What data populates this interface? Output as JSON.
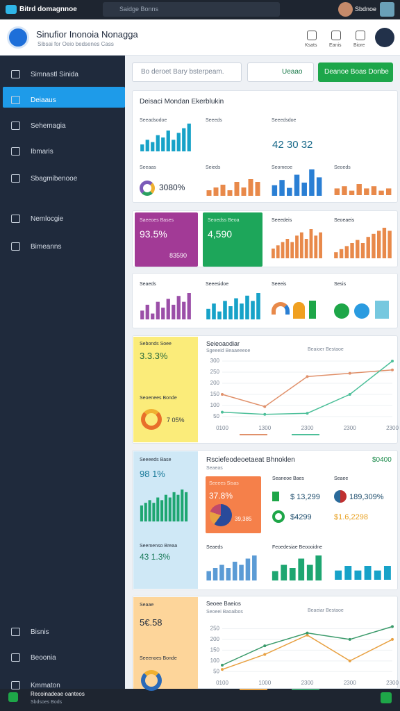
{
  "topbar": {
    "app": "Bitrd domagnnoe",
    "search": "Saidge Bonns",
    "user": "Sbdnoe"
  },
  "header": {
    "title": "Sinufior Inonoia Nonagga",
    "subtitle": "Sibsai for Oeio bedsenes Cass",
    "actions": [
      "Ksats",
      "Eanis",
      "Biore"
    ]
  },
  "sidebar": {
    "items": [
      "Simnastl Sinida",
      "Deiaaus",
      "Sehemagia",
      "Ibmaris",
      "Sbagmibenooe",
      "Nemlocgie",
      "Bimeanns"
    ],
    "bottom": [
      "Bisnis",
      "Beoonia",
      "Kmmaton"
    ]
  },
  "toolbar": {
    "search": "Bo deroet Bary bsterpeam.",
    "button": "Ueaao",
    "primary": "Deanoe Boas Donbe"
  },
  "overview": {
    "title": "Deisaci Mondan Ekerblukin",
    "labels": [
      "Seeadsodoe",
      "Seeeds",
      "Seeedsdoe",
      "Seeaas",
      "Seieds",
      "Seomeoe",
      "Seoeds"
    ],
    "stats": [
      "42 30 32",
      "3080%"
    ]
  },
  "kpis": {
    "purple": {
      "label": "Saeeoes Bases",
      "value": "93.5%",
      "foot": "83590"
    },
    "green": {
      "label": "Seoedss Beoa",
      "value": "4,590"
    },
    "labels": [
      "Seeedeis",
      "Seoeaeis"
    ]
  },
  "row3": {
    "labels": [
      "Seaeds",
      "Seeesidoe",
      "Seeeis",
      "Sesis"
    ]
  },
  "panel_yellow": {
    "label": "Sebonds Soee",
    "value": "3.3.3%",
    "label2": "Seoenees Bonde",
    "value2": "7 05%"
  },
  "panel_blue": {
    "label": "Seeeeds Base",
    "value": "98 1%",
    "label2": "Seemenso Breaa",
    "value2": "43 1.3%"
  },
  "panel_orange": {
    "label": "Seaae",
    "value": "5€.58",
    "label2": "Seeenoes Bonde"
  },
  "revenue": {
    "title": "Rsciefeodeoetaeat Bhnoklen",
    "subtitle": "Seaeas",
    "total": "$0400",
    "card_label": "Seeees Sisas",
    "card_value": "37.8%",
    "card_foot": "39,385",
    "rows": [
      {
        "label": "Seaneoe Baes",
        "value": "$ 13,299"
      },
      {
        "label": "Seaee",
        "value": "189,309%"
      },
      {
        "value": "$4299"
      },
      {
        "value": "$1.6,2298"
      }
    ],
    "labels": [
      "Seaeds",
      "Feoedesiae Beoooidne"
    ]
  },
  "minis": [
    {
      "color": "#17a2c8",
      "values": [
        3,
        5,
        4,
        7,
        6,
        9,
        5,
        8,
        10,
        12
      ]
    },
    {
      "color": "#e8894a",
      "values": [
        2,
        3,
        4,
        2,
        5,
        3,
        6,
        5
      ]
    },
    {
      "color": "#2a7fd4",
      "values": [
        4,
        6,
        3,
        8,
        5,
        10,
        7
      ]
    },
    {
      "color": "#e8894a",
      "values": [
        3,
        4,
        2,
        5,
        3,
        4,
        2,
        3
      ]
    },
    {
      "color": "#e8894a",
      "values": [
        3,
        4,
        5,
        6,
        5,
        7,
        8,
        6,
        9,
        7,
        8
      ]
    },
    {
      "color": "#e8894a",
      "values": [
        2,
        3,
        4,
        5,
        6,
        5,
        7,
        8,
        9,
        10,
        9
      ]
    },
    {
      "color": "#9b4fa8",
      "values": [
        3,
        5,
        2,
        6,
        4,
        7,
        5,
        8,
        6,
        9
      ]
    },
    {
      "color": "#17a2c8",
      "values": [
        4,
        6,
        3,
        7,
        5,
        8,
        6,
        9,
        7,
        10
      ]
    },
    {
      "color": "#1ea671",
      "values": [
        6,
        7,
        8,
        7,
        9,
        8,
        10,
        9,
        11,
        10,
        12,
        11
      ]
    },
    {
      "color": "#5b9bd5",
      "values": [
        3,
        4,
        5,
        4,
        6,
        5,
        7,
        8
      ]
    },
    {
      "color": "#1ea671",
      "values": [
        3,
        5,
        4,
        7,
        5,
        8
      ]
    },
    {
      "color": "#17a2c8",
      "values": [
        2,
        3,
        2,
        3,
        2,
        3
      ]
    }
  ],
  "line_charts": [
    {
      "title": "Seieoaodiar",
      "subtitle": "Sgeeeid Beaaeeeoe",
      "legend_title": "Beaioer Bestaoe",
      "categories": [
        "0100",
        "1300",
        "2300",
        "2300",
        "2300"
      ],
      "ylim": [
        25,
        325
      ],
      "yticks": [
        50,
        100,
        150,
        200,
        250,
        300
      ],
      "series": [
        {
          "color": "#e0906a",
          "values": [
            150,
            95,
            230,
            245,
            260
          ]
        },
        {
          "color": "#4cbf99",
          "values": [
            70,
            60,
            65,
            150,
            300
          ]
        }
      ]
    },
    {
      "title": "Seoee Baeios",
      "subtitle": "Seoeei Baoaibos",
      "legend_title": "Beaeiar Bestaoe",
      "categories": [
        "0100",
        "1000",
        "2300",
        "2300",
        "2300"
      ],
      "ylim": [
        25,
        300
      ],
      "yticks": [
        50,
        100,
        150,
        200,
        250
      ],
      "series": [
        {
          "color": "#e8a040",
          "values": [
            60,
            130,
            220,
            100,
            200
          ]
        },
        {
          "color": "#3a9a6a",
          "values": [
            80,
            170,
            230,
            200,
            260
          ]
        }
      ]
    }
  ],
  "footer": {
    "left": "Recoinadeae oanteos",
    "sub": "Sbdsoes Bods"
  }
}
